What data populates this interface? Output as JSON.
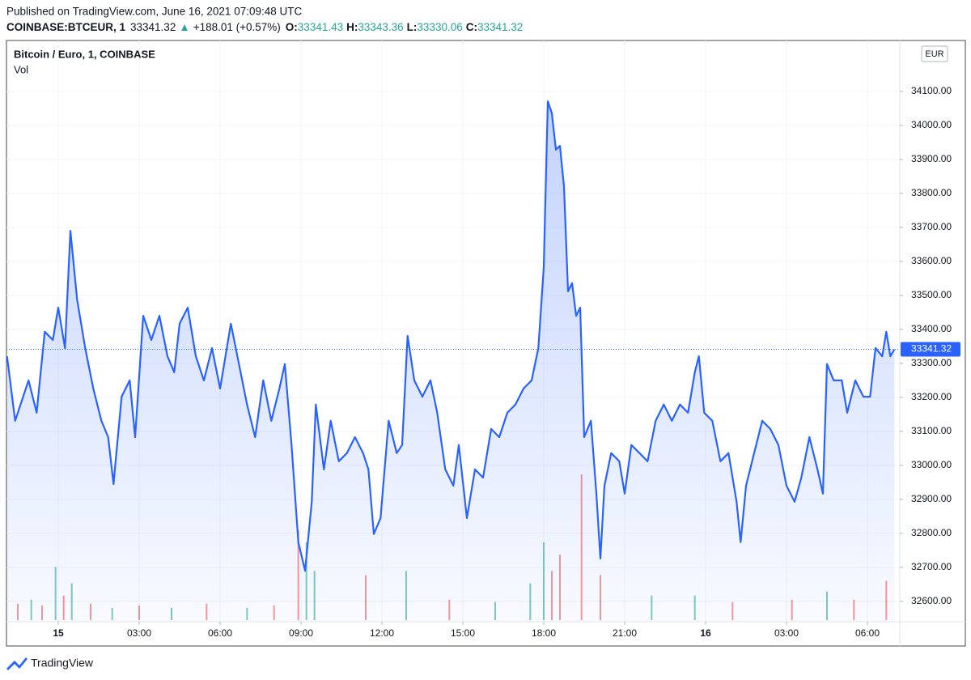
{
  "header": {
    "published": "Published on TradingView.com, June 16, 2021 07:09:48 UTC",
    "symbol": "COINBASE:BTCEUR, 1",
    "price": 33341.32,
    "change": "+188.01 (+0.57%)",
    "ohlc": [
      {
        "label": "O:",
        "value": 33341.43
      },
      {
        "label": "H:",
        "value": 33343.36
      },
      {
        "label": "L:",
        "value": 33330.06
      },
      {
        "label": "C:",
        "value": 33341.32
      }
    ]
  },
  "chart_data": {
    "type": "line",
    "title": "Bitcoin / Euro, 1, COINBASE",
    "currency": "EUR",
    "series": [
      {
        "name": "BTCEUR",
        "color": "#2962ff",
        "x": [
          -1.9,
          -1.6,
          -1.1,
          -0.8,
          -0.5,
          -0.2,
          0,
          0.25,
          0.45,
          0.7,
          1.0,
          1.3,
          1.6,
          1.85,
          2.05,
          2.35,
          2.65,
          2.85,
          3.15,
          3.45,
          3.75,
          4.05,
          4.3,
          4.5,
          4.8,
          5.1,
          5.4,
          5.7,
          6.0,
          6.4,
          6.7,
          7.0,
          7.3,
          7.6,
          7.9,
          8.2,
          8.4,
          8.65,
          8.9,
          9.15,
          9.4,
          9.55,
          9.85,
          10.1,
          10.4,
          10.7,
          11.0,
          11.3,
          11.5,
          11.7,
          11.95,
          12.25,
          12.55,
          12.75,
          12.95,
          13.2,
          13.5,
          13.8,
          14.05,
          14.35,
          14.65,
          14.85,
          15.15,
          15.45,
          15.75,
          16.05,
          16.35,
          16.65,
          16.95,
          17.25,
          17.55,
          17.8,
          18.0,
          18.15,
          18.3,
          18.45,
          18.6,
          18.75,
          18.9,
          19.05,
          19.2,
          19.35,
          19.5,
          19.75,
          19.95,
          20.1,
          20.25,
          20.5,
          20.8,
          21.0,
          21.25,
          21.55,
          21.85,
          22.15,
          22.45,
          22.75,
          23.05,
          23.35,
          23.6,
          23.75,
          23.95,
          24.25,
          24.55,
          24.85,
          25.15,
          25.3,
          25.5,
          25.8,
          26.1,
          26.4,
          26.7,
          27.0,
          27.3,
          27.55,
          27.85,
          28.15,
          28.35,
          28.5,
          28.75,
          29.05,
          29.25,
          29.55,
          29.85,
          30.1,
          30.3,
          30.55,
          30.7,
          30.85,
          31.0
        ],
        "values": [
          33321,
          33131,
          33250,
          33155,
          33393,
          33369,
          33464,
          33345,
          33690,
          33488,
          33345,
          33226,
          33131,
          33083,
          32945,
          33202,
          33250,
          33083,
          33440,
          33369,
          33440,
          33321,
          33274,
          33417,
          33464,
          33321,
          33250,
          33345,
          33226,
          33417,
          33298,
          33179,
          33083,
          33250,
          33131,
          33226,
          33298,
          33060,
          32774,
          32690,
          32893,
          33179,
          32988,
          33131,
          33012,
          33036,
          33083,
          33036,
          32988,
          32798,
          32845,
          33131,
          33036,
          33060,
          33381,
          33250,
          33202,
          33250,
          33155,
          32988,
          32940,
          33060,
          32845,
          32988,
          32964,
          33107,
          33083,
          33155,
          33179,
          33226,
          33250,
          33345,
          33583,
          34071,
          34036,
          33929,
          33940,
          33821,
          33512,
          33536,
          33440,
          33464,
          33083,
          33131,
          32917,
          32726,
          32940,
          33036,
          33012,
          32917,
          33060,
          33036,
          33012,
          33131,
          33179,
          33131,
          33179,
          33155,
          33274,
          33321,
          33155,
          33131,
          33012,
          33036,
          32893,
          32774,
          32940,
          33036,
          33131,
          33107,
          33060,
          32940,
          32893,
          32964,
          33083,
          32988,
          32917,
          33298,
          33250,
          33250,
          33155,
          33250,
          33202,
          33202,
          33345,
          33321,
          33393,
          33321,
          33341
        ]
      }
    ],
    "volume": {
      "name": "Vol",
      "x": [
        -1.5,
        -1.0,
        -0.6,
        -0.1,
        0.2,
        0.5,
        1.2,
        2.0,
        3.0,
        4.2,
        5.5,
        7.0,
        8.0,
        8.9,
        9.2,
        9.5,
        11.4,
        12.9,
        14.5,
        16.2,
        17.5,
        18.0,
        18.3,
        18.6,
        19.4,
        20.1,
        22.0,
        23.6,
        25.0,
        27.2,
        28.5,
        29.5,
        30.7
      ],
      "values": [
        20,
        25,
        18,
        65,
        30,
        45,
        20,
        15,
        18,
        15,
        20,
        15,
        18,
        110,
        95,
        60,
        55,
        60,
        25,
        22,
        45,
        95,
        60,
        80,
        178,
        55,
        30,
        30,
        22,
        25,
        35,
        25,
        48
      ],
      "colors": [
        "#ef5350",
        "#26a69a",
        "#ef5350",
        "#26a69a",
        "#ef5350",
        "#26a69a",
        "#ef5350",
        "#26a69a",
        "#ef5350",
        "#26a69a",
        "#ef5350",
        "#26a69a",
        "#ef5350",
        "#ef5350",
        "#26a69a",
        "#26a69a",
        "#ef5350",
        "#26a69a",
        "#ef5350",
        "#26a69a",
        "#26a69a",
        "#26a69a",
        "#ef5350",
        "#ef5350",
        "#ef5350",
        "#ef5350",
        "#26a69a",
        "#26a69a",
        "#ef5350",
        "#ef5350",
        "#26a69a",
        "#ef5350",
        "#ef5350"
      ]
    },
    "last_price": 33341.32,
    "xlim": [
      -1.92,
      31.2
    ],
    "xticks": [
      {
        "value": 0,
        "label": "15"
      },
      {
        "value": 3,
        "label": "03:00"
      },
      {
        "value": 6,
        "label": "06:00"
      },
      {
        "value": 9,
        "label": "09:00"
      },
      {
        "value": 12,
        "label": "12:00"
      },
      {
        "value": 15,
        "label": "15:00"
      },
      {
        "value": 18,
        "label": "18:00"
      },
      {
        "value": 21,
        "label": "21:00"
      },
      {
        "value": 24,
        "label": "16"
      },
      {
        "value": 27,
        "label": "03:00"
      },
      {
        "value": 30,
        "label": "06:00"
      }
    ],
    "ylim": [
      32540,
      34250
    ],
    "yticks": [
      {
        "value": 32600,
        "label": "32600.00"
      },
      {
        "value": 32700,
        "label": "32700.00"
      },
      {
        "value": 32800,
        "label": "32800.00"
      },
      {
        "value": 32900,
        "label": "32900.00"
      },
      {
        "value": 33000,
        "label": "33000.00"
      },
      {
        "value": 33100,
        "label": "33100.00"
      },
      {
        "value": 33200,
        "label": "33200.00"
      },
      {
        "value": 33300,
        "label": "33300.00"
      },
      {
        "value": 33400,
        "label": "33400.00"
      },
      {
        "value": 33500,
        "label": "33500.00"
      },
      {
        "value": 33600,
        "label": "33600.00"
      },
      {
        "value": 33700,
        "label": "33700.00"
      },
      {
        "value": 33800,
        "label": "33800.00"
      },
      {
        "value": 33900,
        "label": "33900.00"
      },
      {
        "value": 34000,
        "label": "34000.00"
      },
      {
        "value": 34100,
        "label": "34100.00"
      }
    ],
    "grid": true
  },
  "footer": {
    "brand": "TradingView"
  }
}
